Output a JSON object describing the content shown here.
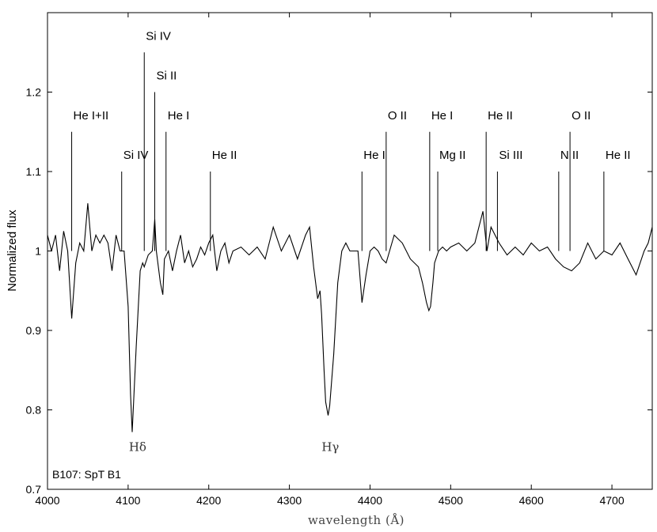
{
  "chart_data": {
    "type": "line",
    "xlabel": "wavelength (Å)",
    "ylabel": "Normalized flux",
    "xlim": [
      4000,
      4750
    ],
    "ylim": [
      0.7,
      1.3
    ],
    "x_ticks": [
      4000,
      4100,
      4200,
      4300,
      4400,
      4500,
      4600,
      4700
    ],
    "y_ticks": [
      0.7,
      0.8,
      0.9,
      1.0,
      1.1,
      1.2
    ],
    "y_tick_labels": [
      "0.7",
      "0.8",
      "0.9",
      "1",
      "1.1",
      "1.2"
    ],
    "annotation": "B107: SpT B1",
    "grid": false,
    "series": [
      {
        "x": [
          4000,
          4005,
          4010,
          4015,
          4020,
          4025,
          4030,
          4035,
          4040,
          4045,
          4050,
          4055,
          4060,
          4065,
          4070,
          4075,
          4080,
          4085,
          4090,
          4095,
          4100,
          4103,
          4105,
          4110,
          4115,
          4118,
          4120,
          4125,
          4130,
          4133,
          4135,
          4140,
          4143,
          4145,
          4150,
          4155,
          4160,
          4165,
          4170,
          4175,
          4180,
          4185,
          4190,
          4195,
          4200,
          4205,
          4210,
          4215,
          4220,
          4225,
          4230,
          4240,
          4250,
          4260,
          4270,
          4280,
          4290,
          4300,
          4310,
          4320,
          4325,
          4330,
          4335,
          4338,
          4340,
          4343,
          4345,
          4348,
          4350,
          4355,
          4360,
          4365,
          4370,
          4375,
          4380,
          4385,
          4390,
          4395,
          4400,
          4405,
          4410,
          4415,
          4420,
          4430,
          4440,
          4450,
          4460,
          4465,
          4470,
          4473,
          4475,
          4478,
          4480,
          4485,
          4490,
          4495,
          4500,
          4510,
          4520,
          4530,
          4535,
          4540,
          4545,
          4550,
          4555,
          4560,
          4570,
          4580,
          4590,
          4600,
          4610,
          4620,
          4630,
          4640,
          4650,
          4660,
          4670,
          4680,
          4690,
          4700,
          4710,
          4720,
          4730,
          4740,
          4745,
          4750
        ],
        "y": [
          1.02,
          1.0,
          1.02,
          0.975,
          1.025,
          1.0,
          0.915,
          0.985,
          1.01,
          1.0,
          1.06,
          1.0,
          1.02,
          1.01,
          1.02,
          1.01,
          0.975,
          1.02,
          1.0,
          1.0,
          0.93,
          0.82,
          0.772,
          0.88,
          0.975,
          0.985,
          0.98,
          0.995,
          1.0,
          1.04,
          1.0,
          0.96,
          0.945,
          0.99,
          1.0,
          0.975,
          1.0,
          1.02,
          0.985,
          1.0,
          0.98,
          0.99,
          1.005,
          0.995,
          1.01,
          1.02,
          0.975,
          1.0,
          1.01,
          0.985,
          1.0,
          1.005,
          0.995,
          1.005,
          0.99,
          1.03,
          1.0,
          1.02,
          0.99,
          1.02,
          1.03,
          0.98,
          0.94,
          0.95,
          0.92,
          0.85,
          0.81,
          0.793,
          0.805,
          0.87,
          0.96,
          1.0,
          1.01,
          1.0,
          1.0,
          1.0,
          0.935,
          0.97,
          1.0,
          1.005,
          1.0,
          0.99,
          0.985,
          1.02,
          1.01,
          0.99,
          0.98,
          0.96,
          0.935,
          0.925,
          0.93,
          0.96,
          0.985,
          1.0,
          1.005,
          1.0,
          1.005,
          1.01,
          1.0,
          1.01,
          1.03,
          1.05,
          1.0,
          1.03,
          1.02,
          1.01,
          0.995,
          1.005,
          0.995,
          1.01,
          1.0,
          1.005,
          0.99,
          0.98,
          0.975,
          0.985,
          1.01,
          0.99,
          1.0,
          0.995,
          1.01,
          0.99,
          0.97,
          1.0,
          1.01,
          1.03
        ]
      }
    ],
    "line_markers": [
      {
        "x": 4030,
        "label": "He I+II",
        "top": 1.15
      },
      {
        "x": 4092,
        "label": "Si IV",
        "top": 1.1
      },
      {
        "x": 4120,
        "label": "Si IV",
        "top": 1.25
      },
      {
        "x": 4133,
        "label": "Si II",
        "top": 1.2
      },
      {
        "x": 4147,
        "label": "He I",
        "top": 1.15
      },
      {
        "x": 4202,
        "label": "He II",
        "top": 1.1
      },
      {
        "x": 4390,
        "label": "He I",
        "top": 1.1
      },
      {
        "x": 4420,
        "label": "O II",
        "top": 1.15
      },
      {
        "x": 4474,
        "label": "He I",
        "top": 1.15
      },
      {
        "x": 4484,
        "label": "Mg II",
        "top": 1.1
      },
      {
        "x": 4544,
        "label": "He II",
        "top": 1.15
      },
      {
        "x": 4558,
        "label": "Si III",
        "top": 1.1
      },
      {
        "x": 4634,
        "label": "N II",
        "top": 1.1
      },
      {
        "x": 4648,
        "label": "O II",
        "top": 1.15
      },
      {
        "x": 4690,
        "label": "He II",
        "top": 1.1
      }
    ],
    "feature_labels": [
      {
        "x": 4102,
        "y": 0.757,
        "label": "Hδ"
      },
      {
        "x": 4341,
        "y": 0.757,
        "label": "Hγ"
      }
    ]
  }
}
